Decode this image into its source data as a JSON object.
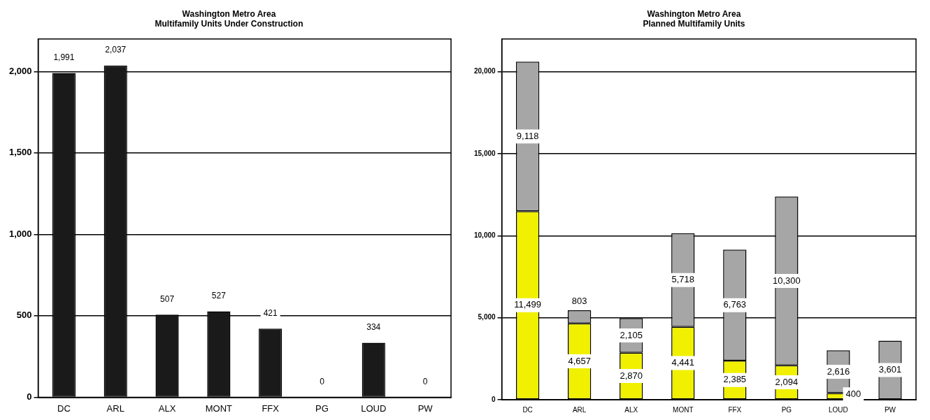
{
  "chart_data": [
    {
      "type": "bar",
      "title": "Washington Metro Area\nMultifamily Units Under Construction",
      "categories": [
        "DC",
        "ARL",
        "ALX",
        "MONT",
        "FFX",
        "PG",
        "LOUD",
        "PW"
      ],
      "series": [
        {
          "color": "#1a1a1a",
          "values": [
            1991,
            2037,
            507,
            527,
            421,
            0,
            334,
            0
          ],
          "value_labels": [
            "1,991",
            "2,037",
            "507",
            "527",
            "421",
            "0",
            "334",
            "0"
          ]
        }
      ],
      "ylim": [
        0,
        2200
      ],
      "yticks": [
        {
          "value": 0,
          "label": "0"
        },
        {
          "value": 500,
          "label": "500"
        },
        {
          "value": 1000,
          "label": "1,000"
        },
        {
          "value": 1500,
          "label": "1,500"
        },
        {
          "value": 2000,
          "label": "2,000"
        }
      ],
      "grid": "y",
      "legend": false
    },
    {
      "type": "bar",
      "title": "Washington Metro Area\nPlanned Multifamily Units",
      "stacked": true,
      "categories": [
        "DC",
        "ARL",
        "ALX",
        "MONT",
        "FFX",
        "PG",
        "LOUD",
        "PW"
      ],
      "series": [
        {
          "color": "#f0f000",
          "values": [
            11499,
            4657,
            2870,
            4441,
            2385,
            2094,
            400,
            null
          ],
          "value_labels": [
            "11,499",
            "4,657",
            "2,870",
            "4,441",
            "2,385",
            "2,094",
            "400",
            null
          ]
        },
        {
          "color": "#a6a6a6",
          "values": [
            9118,
            803,
            2105,
            5718,
            6763,
            10300,
            2616,
            3601
          ],
          "value_labels": [
            "9,118",
            "803",
            "2,105",
            "5,718",
            "6,763",
            "10,300",
            "2,616",
            "3,601"
          ]
        }
      ],
      "ylim": [
        0,
        22000
      ],
      "yticks": [
        {
          "value": 0,
          "label": "0"
        },
        {
          "value": 5000,
          "label": "5,000"
        },
        {
          "value": 10000,
          "label": "10,000"
        },
        {
          "value": 15000,
          "label": "15,000"
        },
        {
          "value": 20000,
          "label": "20,000"
        }
      ],
      "grid": "y",
      "legend": false
    }
  ]
}
